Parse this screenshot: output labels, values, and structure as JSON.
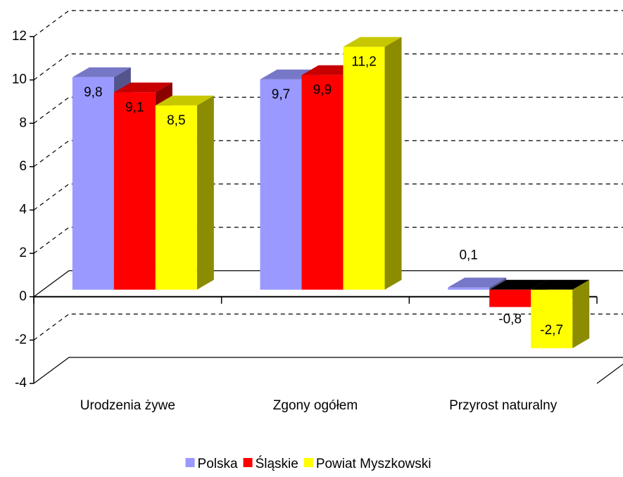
{
  "chart_data": {
    "type": "bar3d",
    "categories": [
      "Urodzenia żywe",
      "Zgony ogółem",
      "Przyrost naturalny"
    ],
    "series": [
      {
        "name": "Polska",
        "color": "#9999ff",
        "values": [
          9.8,
          9.7,
          0.1
        ],
        "value_labels": [
          "9,8",
          "9,7",
          "0,1"
        ]
      },
      {
        "name": "Śląskie",
        "color": "#ff0000",
        "values": [
          9.1,
          9.9,
          -0.8
        ],
        "value_labels": [
          "9,1",
          "9,9",
          "-0,8"
        ]
      },
      {
        "name": "Powiat Myszkowski",
        "color": "#ffff00",
        "values": [
          8.5,
          11.2,
          -2.7
        ],
        "value_labels": [
          "8,5",
          "11,2",
          "-2,7"
        ]
      }
    ],
    "ylim": [
      -4,
      12
    ],
    "yticks": [
      -4,
      -2,
      0,
      2,
      4,
      6,
      8,
      10,
      12
    ],
    "grid": true,
    "legend": "bottom"
  }
}
